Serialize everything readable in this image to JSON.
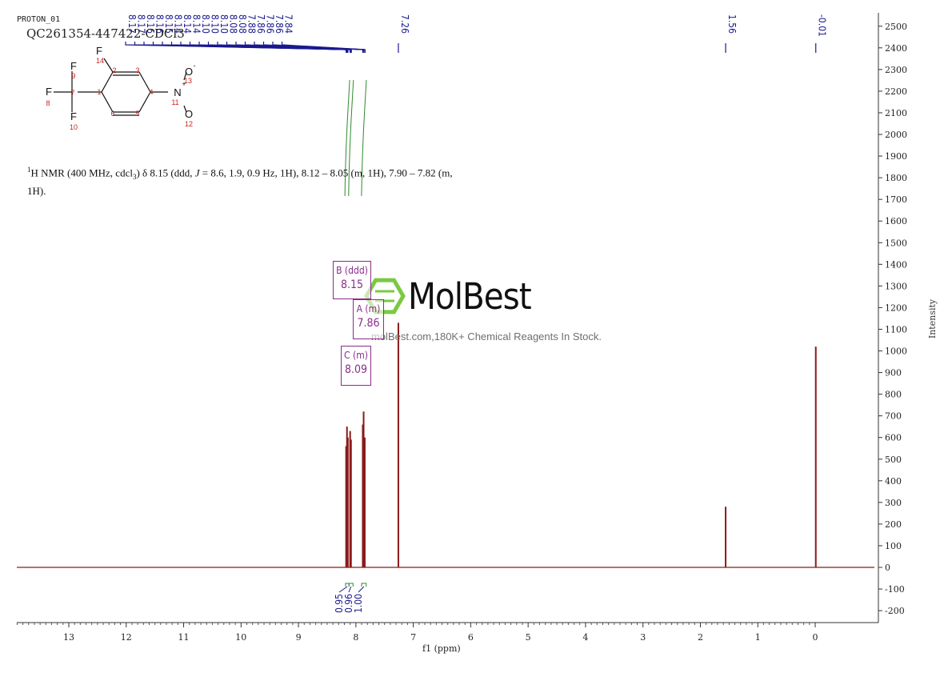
{
  "header": {
    "experiment": "PROTON_01",
    "sample": "QC261354-447422-CDCl3"
  },
  "description": {
    "prefix_sup": "1",
    "prefix": "H NMR (400 MHz, cdcl",
    "sub": "3",
    "part1": ") δ 8.15 (ddd, ",
    "j": "J",
    "part2": " = 8.6, 1.9, 0.9 Hz, 1H), 8.12 – 8.05 (m, 1H), 7.90 – 7.82 (m,",
    "line2": "1H)."
  },
  "watermark": {
    "name": "MolBest",
    "url": "molBest.com,180K+ Chemical Reagents In Stock."
  },
  "multiplets": [
    {
      "label": "B (ddd)",
      "shift": "8.15"
    },
    {
      "label": "A (m)",
      "shift": "7.86"
    },
    {
      "label": "C (m)",
      "shift": "8.09"
    }
  ],
  "molecule": {
    "atoms": [
      "F",
      "14",
      "2",
      "3",
      "O",
      "-",
      "13",
      "F",
      "9",
      "F",
      "8",
      "7",
      "1",
      "4",
      "N",
      "+",
      "11",
      "F",
      "10",
      "6",
      "5",
      "O",
      "12"
    ]
  },
  "colors": {
    "spectrum": "#8b1a1a",
    "peak_labels": "#1a1a8f",
    "integral": "#2e8b2e",
    "multiplet": "#8a2c8a",
    "logo": "#7ac943"
  },
  "chart_data": {
    "type": "line",
    "xlabel": "f1 (ppm)",
    "ylabel": "Intensity",
    "xlim": [
      14.0,
      -1.0
    ],
    "ylim": [
      -250,
      2550
    ],
    "x_ticks": [
      13,
      12,
      11,
      10,
      9,
      8,
      7,
      6,
      5,
      4,
      3,
      2,
      1,
      0
    ],
    "y_ticks": [
      2500,
      2400,
      2300,
      2200,
      2100,
      2000,
      1900,
      1800,
      1700,
      1600,
      1500,
      1400,
      1300,
      1200,
      1100,
      1000,
      900,
      800,
      700,
      600,
      500,
      400,
      300,
      200,
      100,
      0,
      -100,
      -200
    ],
    "peak_labels": [
      "8.17",
      "8.17",
      "8.16",
      "8.16",
      "8.15",
      "8.14",
      "8.14",
      "8.14",
      "8.10",
      "8.10",
      "8.10",
      "8.08",
      "8.08",
      "7.88",
      "7.86",
      "7.86",
      "7.86",
      "7.84",
      "7.26",
      "1.56",
      "-0.01"
    ],
    "peaks": [
      {
        "x": 8.17,
        "y": 560
      },
      {
        "x": 8.155,
        "y": 650
      },
      {
        "x": 8.14,
        "y": 600
      },
      {
        "x": 8.1,
        "y": 630
      },
      {
        "x": 8.085,
        "y": 590
      },
      {
        "x": 7.88,
        "y": 660
      },
      {
        "x": 7.865,
        "y": 720
      },
      {
        "x": 7.845,
        "y": 600
      },
      {
        "x": 7.26,
        "y": 1130
      },
      {
        "x": 1.56,
        "y": 280
      },
      {
        "x": -0.01,
        "y": 1020
      }
    ],
    "integrals": [
      {
        "from": 8.18,
        "to": 8.12,
        "value": "0.95"
      },
      {
        "from": 8.12,
        "to": 8.05,
        "value": "0.96"
      },
      {
        "from": 7.9,
        "to": 7.82,
        "value": "1.00"
      }
    ]
  }
}
